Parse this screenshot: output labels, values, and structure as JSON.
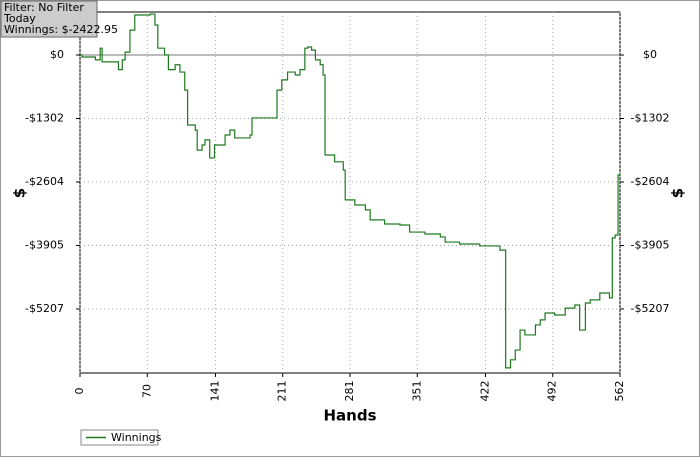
{
  "filter_box": {
    "filter": "Filter: No Filter",
    "period": "Today",
    "winnings": "Winnings: $-2422.95"
  },
  "chart_data": {
    "type": "line",
    "x_label": "Hands",
    "y_label": "$",
    "y2_label": "$",
    "x": [
      0,
      2,
      16,
      21,
      23,
      36,
      40,
      44,
      47,
      52,
      57,
      73,
      78,
      81,
      88,
      92,
      99,
      104,
      109,
      112,
      120,
      122,
      127,
      130,
      135,
      140,
      151,
      156,
      161,
      177,
      179,
      193,
      203,
      205,
      210,
      216,
      224,
      229,
      234,
      237,
      241,
      245,
      250,
      253,
      255,
      265,
      274,
      276,
      286,
      297,
      302,
      317,
      333,
      343,
      359,
      375,
      380,
      395,
      416,
      434,
      437,
      443,
      448,
      453,
      458,
      463,
      474,
      479,
      484,
      494,
      505,
      515,
      520,
      526,
      531,
      539,
      541,
      551,
      554,
      557,
      560,
      562
    ],
    "series": [
      {
        "name": "Winnings",
        "color": "#1f7a1f",
        "values": [
          0,
          -40,
          -100,
          140,
          -140,
          -140,
          -300,
          -100,
          60,
          510,
          820,
          840,
          615,
          140,
          0,
          -300,
          -200,
          -350,
          -720,
          -1435,
          -1540,
          -1950,
          -1845,
          -1740,
          -2110,
          -1845,
          -1640,
          -1540,
          -1700,
          -1640,
          -1290,
          -1290,
          -1290,
          -720,
          -510,
          -350,
          -410,
          -300,
          140,
          165,
          100,
          -100,
          -200,
          -410,
          -2050,
          -2190,
          -2360,
          -2970,
          -3075,
          -3175,
          -3380,
          -3465,
          -3485,
          -3630,
          -3670,
          -3730,
          -3835,
          -3875,
          -3915,
          -3915,
          -4000,
          -6415,
          -6250,
          -6050,
          -5640,
          -5740,
          -5535,
          -5430,
          -5290,
          -5330,
          -5190,
          -5125,
          -5640,
          -5085,
          -5020,
          -5020,
          -4880,
          -4980,
          -3750,
          -3690,
          -2460,
          -2423
        ]
      }
    ],
    "xlim": [
      0,
      562
    ],
    "xticks": [
      0,
      70,
      141,
      211,
      281,
      351,
      422,
      492,
      562
    ],
    "ylim": [
      -6520,
      882
    ],
    "yticks": [
      {
        "value": 0,
        "label": "$0"
      },
      {
        "value": -1302,
        "label": "-$1302"
      },
      {
        "value": -2604,
        "label": "-$2604"
      },
      {
        "value": -3905,
        "label": "-$3905"
      },
      {
        "value": -5207,
        "label": "-$5207"
      }
    ],
    "grid": true
  }
}
